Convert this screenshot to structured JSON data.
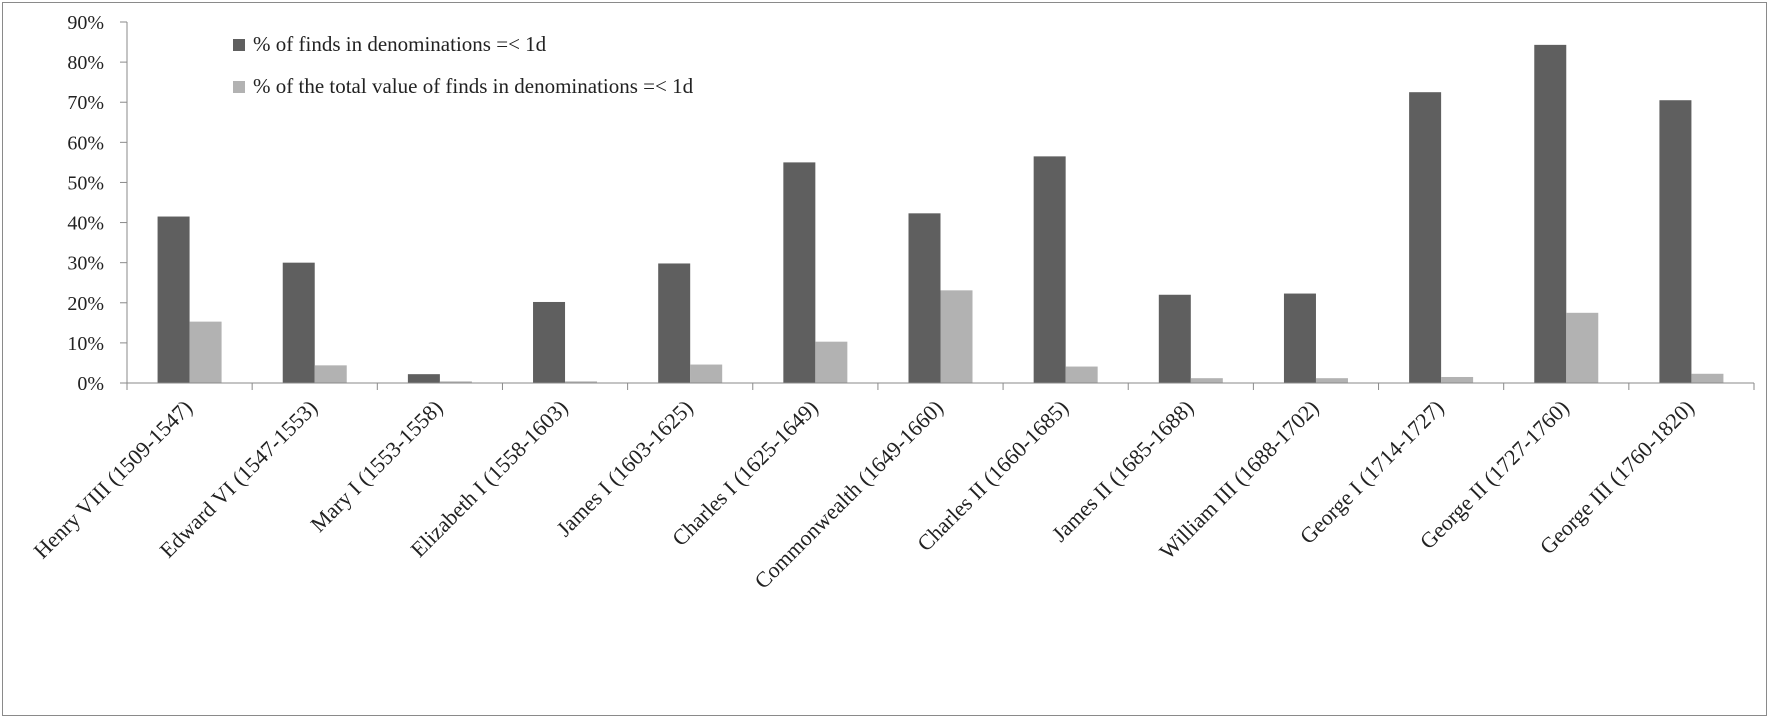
{
  "chart_data": {
    "type": "bar",
    "title": "",
    "xlabel": "",
    "ylabel": "",
    "ylim": [
      0,
      90
    ],
    "yticks": [
      "0%",
      "10%",
      "20%",
      "30%",
      "40%",
      "50%",
      "60%",
      "70%",
      "80%",
      "90%"
    ],
    "grid": false,
    "legend_position": "top-left",
    "categories": [
      "Henry VIII (1509-1547)",
      "Edward VI (1547-1553)",
      "Mary I (1553-1558)",
      "Elizabeth I (1558-1603)",
      "James I (1603-1625)",
      "Charles I (1625-1649)",
      "Commonwealth (1649-1660)",
      "Charles II (1660-1685)",
      "James II (1685-1688)",
      "William III (1688-1702)",
      "George I (1714-1727)",
      "George II (1727-1760)",
      "George III (1760-1820)"
    ],
    "series": [
      {
        "name": "% of finds in denominations =< 1d",
        "color": "#5f5f5f",
        "values": [
          41.5,
          30.0,
          2.2,
          20.2,
          29.8,
          55.0,
          42.3,
          56.5,
          22.0,
          22.3,
          72.5,
          84.3,
          70.5
        ]
      },
      {
        "name": "% of the total value of finds in denominations =< 1d",
        "color": "#b2b2b2",
        "values": [
          15.3,
          4.4,
          0.4,
          0.4,
          4.6,
          10.3,
          23.1,
          4.1,
          1.2,
          1.2,
          1.5,
          17.5,
          2.3
        ]
      }
    ]
  }
}
